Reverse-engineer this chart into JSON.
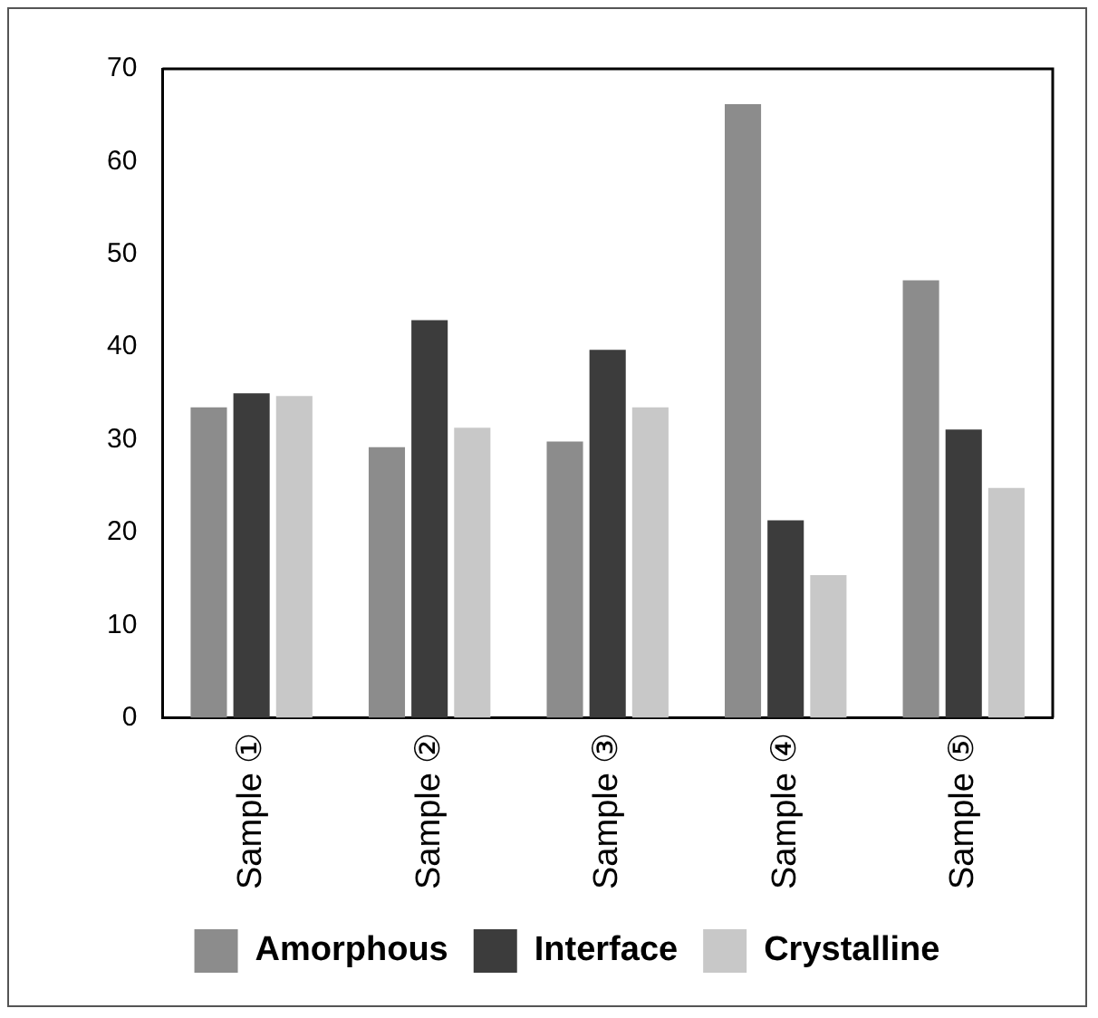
{
  "chart_data": {
    "type": "bar",
    "categories": [
      "Sample ①",
      "Sample ②",
      "Sample ③",
      "Sample ④",
      "Sample ⑤"
    ],
    "series": [
      {
        "name": "Amorphous",
        "color": "#8c8c8c",
        "values": [
          33.5,
          29.2,
          29.8,
          66.2,
          47.2
        ]
      },
      {
        "name": "Interface",
        "color": "#3c3c3c",
        "values": [
          35.0,
          42.9,
          39.7,
          21.3,
          31.1
        ]
      },
      {
        "name": "Crystalline",
        "color": "#c8c8c8",
        "values": [
          34.7,
          31.3,
          33.5,
          15.4,
          24.8
        ]
      }
    ],
    "ylim": [
      0,
      70
    ],
    "yticks": [
      0,
      10,
      20,
      30,
      40,
      50,
      60,
      70
    ],
    "grid": false,
    "legend": "bottom"
  }
}
